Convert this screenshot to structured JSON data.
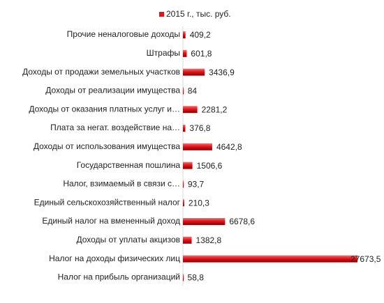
{
  "chart_data": {
    "type": "hbar",
    "categories": [
      "Прочие неналоговые доходы",
      "Штрафы",
      "Доходы от продажи земельных участков",
      "Доходы от реализации имущества",
      "Доходы от оказания платных услуг и…",
      "Плата за негат. воздействие на…",
      "Доходы от использования имущества",
      "Государственная пошлина",
      "Налог, взимаемый в связи с…",
      "Единый сельскохозяйственный налог",
      "Единый налог на вмененный доход",
      "Доходы от уплаты акцизов",
      "Налог на доходы физических лиц",
      "Налог на прибыль организаций"
    ],
    "series": [
      {
        "name": "2015 г., тыс. руб.",
        "color": "#e0141b",
        "values": [
          409.2,
          601.8,
          3436.9,
          84,
          2281.2,
          376.8,
          4642.8,
          1506.6,
          93.7,
          210.3,
          6678.6,
          1382.8,
          27673.5,
          58.8
        ],
        "value_labels": [
          "409,2",
          "601,8",
          "3436,9",
          "84",
          "2281,2",
          "376,8",
          "4642,8",
          "1506,6",
          "93,7",
          "210,3",
          "6678,6",
          "1382,8",
          "27673,5",
          "58,8"
        ]
      }
    ],
    "legend": "top"
  }
}
